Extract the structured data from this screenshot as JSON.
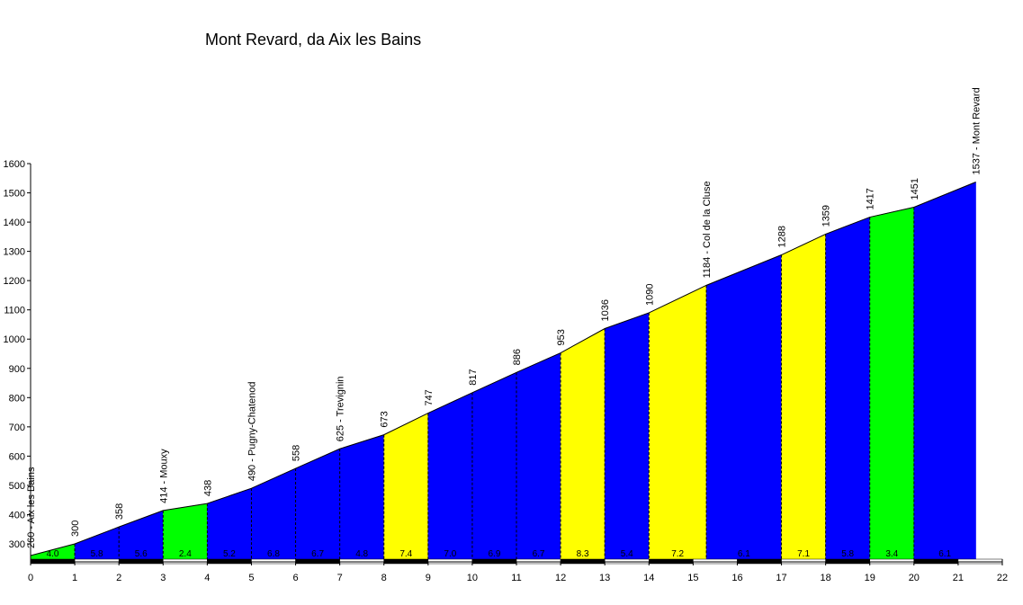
{
  "chart_data": {
    "type": "area",
    "title": "Mont Revard, da Aix les Bains",
    "xlabel": "",
    "ylabel": "",
    "xlim": [
      0,
      22
    ],
    "ylim": [
      240,
      1600
    ],
    "grid": false,
    "x_ticks": [
      0,
      1,
      2,
      3,
      4,
      5,
      6,
      7,
      8,
      9,
      10,
      11,
      12,
      13,
      14,
      15,
      16,
      17,
      18,
      19,
      20,
      21,
      22
    ],
    "y_ticks": [
      300,
      400,
      500,
      600,
      700,
      800,
      900,
      1000,
      1100,
      1200,
      1300,
      1400,
      1500,
      1600
    ],
    "points": [
      {
        "x": 0,
        "y": 260,
        "label": "260 - Aix les Bains"
      },
      {
        "x": 1,
        "y": 300,
        "label": "300"
      },
      {
        "x": 2,
        "y": 358,
        "label": "358"
      },
      {
        "x": 3,
        "y": 414,
        "label": "414 - Mouxy"
      },
      {
        "x": 4,
        "y": 438,
        "label": "438"
      },
      {
        "x": 5,
        "y": 490,
        "label": "490 - Pugny-Chatenod"
      },
      {
        "x": 6,
        "y": 558,
        "label": "558"
      },
      {
        "x": 7,
        "y": 625,
        "label": "625 - Trevignin"
      },
      {
        "x": 8,
        "y": 673,
        "label": "673"
      },
      {
        "x": 9,
        "y": 747,
        "label": "747"
      },
      {
        "x": 10,
        "y": 817,
        "label": "817"
      },
      {
        "x": 11,
        "y": 886,
        "label": "886"
      },
      {
        "x": 12,
        "y": 953,
        "label": "953"
      },
      {
        "x": 13,
        "y": 1036,
        "label": "1036"
      },
      {
        "x": 14,
        "y": 1090,
        "label": "1090"
      },
      {
        "x": 15.3,
        "y": 1184,
        "label": "1184 - Col de la Cluse"
      },
      {
        "x": 17,
        "y": 1288,
        "label": "1288"
      },
      {
        "x": 18,
        "y": 1359,
        "label": "1359"
      },
      {
        "x": 19,
        "y": 1417,
        "label": "1417"
      },
      {
        "x": 20,
        "y": 1451,
        "label": "1451"
      },
      {
        "x": 21.4,
        "y": 1537,
        "label": "1537 - Mont Revard"
      }
    ],
    "segments": [
      {
        "x0": 0,
        "x1": 1,
        "gradient": "4.0",
        "color": "#00ff00"
      },
      {
        "x0": 1,
        "x1": 2,
        "gradient": "5.8",
        "color": "#0000ff"
      },
      {
        "x0": 2,
        "x1": 3,
        "gradient": "5.6",
        "color": "#0000ff"
      },
      {
        "x0": 3,
        "x1": 4,
        "gradient": "2.4",
        "color": "#00ff00"
      },
      {
        "x0": 4,
        "x1": 5,
        "gradient": "5.2",
        "color": "#0000ff"
      },
      {
        "x0": 5,
        "x1": 6,
        "gradient": "6.8",
        "color": "#0000ff"
      },
      {
        "x0": 6,
        "x1": 7,
        "gradient": "6.7",
        "color": "#0000ff"
      },
      {
        "x0": 7,
        "x1": 8,
        "gradient": "4.8",
        "color": "#0000ff"
      },
      {
        "x0": 8,
        "x1": 9,
        "gradient": "7.4",
        "color": "#ffff00"
      },
      {
        "x0": 9,
        "x1": 10,
        "gradient": "7.0",
        "color": "#0000ff"
      },
      {
        "x0": 10,
        "x1": 11,
        "gradient": "6.9",
        "color": "#0000ff"
      },
      {
        "x0": 11,
        "x1": 12,
        "gradient": "6.7",
        "color": "#0000ff"
      },
      {
        "x0": 12,
        "x1": 13,
        "gradient": "8.3",
        "color": "#ffff00"
      },
      {
        "x0": 13,
        "x1": 14,
        "gradient": "5.4",
        "color": "#0000ff"
      },
      {
        "x0": 14,
        "x1": 15.3,
        "gradient": "7.2",
        "color": "#ffff00"
      },
      {
        "x0": 15.3,
        "x1": 17,
        "gradient": "6.1",
        "color": "#0000ff"
      },
      {
        "x0": 17,
        "x1": 18,
        "gradient": "7.1",
        "color": "#ffff00"
      },
      {
        "x0": 18,
        "x1": 19,
        "gradient": "5.8",
        "color": "#0000ff"
      },
      {
        "x0": 19,
        "x1": 20,
        "gradient": "3.4",
        "color": "#00ff00"
      },
      {
        "x0": 20,
        "x1": 21.4,
        "gradient": "6.1",
        "color": "#0000ff"
      }
    ]
  }
}
